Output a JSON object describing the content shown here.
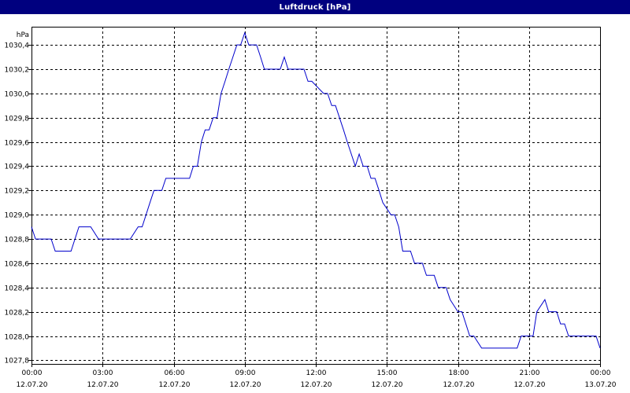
{
  "window": {
    "title": "Luftdruck [hPa]"
  },
  "chart_data": {
    "type": "line",
    "title": "Luftdruck [hPa]",
    "ylabel": "hPa",
    "xlabel": "",
    "ylim": [
      1027.77,
      1030.55
    ],
    "y_ticks": [
      1027.8,
      1028.0,
      1028.2,
      1028.4,
      1028.6,
      1028.8,
      1029.0,
      1029.2,
      1029.4,
      1029.6,
      1029.8,
      1030.0,
      1030.2,
      1030.4
    ],
    "y_tick_labels": [
      "1027,8",
      "1028,0",
      "1028,2",
      "1028,4",
      "1028,6",
      "1028,8",
      "1029,0",
      "1029,2",
      "1029,4",
      "1029,6",
      "1029,8",
      "1030,0",
      "1030,2",
      "1030,4"
    ],
    "x_range_hours": [
      0,
      24
    ],
    "x_ticks": [
      {
        "hour": 0,
        "time": "00:00",
        "date": "12.07.20"
      },
      {
        "hour": 3,
        "time": "03:00",
        "date": "12.07.20"
      },
      {
        "hour": 6,
        "time": "06:00",
        "date": "12.07.20"
      },
      {
        "hour": 9,
        "time": "09:00",
        "date": "12.07.20"
      },
      {
        "hour": 12,
        "time": "12:00",
        "date": "12.07.20"
      },
      {
        "hour": 15,
        "time": "15:00",
        "date": "12.07.20"
      },
      {
        "hour": 18,
        "time": "18:00",
        "date": "12.07.20"
      },
      {
        "hour": 21,
        "time": "21:00",
        "date": "12.07.20"
      },
      {
        "hour": 24,
        "time": "00:00",
        "date": "13.07.20"
      }
    ],
    "grid": true,
    "series": [
      {
        "color": "#0000cc",
        "x": [
          0.0,
          0.17,
          0.83,
          1.0,
          1.67,
          2.0,
          2.5,
          2.83,
          3.67,
          4.0,
          4.17,
          4.5,
          4.67,
          5.0,
          5.17,
          5.5,
          5.67,
          6.0,
          6.17,
          6.67,
          6.83,
          7.0,
          7.17,
          7.33,
          7.5,
          7.67,
          7.83,
          8.0,
          8.17,
          8.33,
          8.5,
          8.67,
          8.83,
          9.0,
          9.17,
          9.5,
          9.67,
          9.83,
          10.5,
          10.67,
          10.83,
          11.5,
          11.67,
          11.83,
          12.33,
          12.5,
          12.67,
          12.83,
          13.0,
          13.17,
          13.33,
          13.5,
          13.67,
          13.83,
          14.0,
          14.17,
          14.33,
          14.5,
          14.67,
          14.83,
          15.17,
          15.33,
          15.5,
          15.67,
          16.0,
          16.17,
          16.5,
          16.67,
          17.0,
          17.17,
          17.5,
          17.67,
          18.0,
          18.17,
          18.5,
          18.67,
          19.0,
          19.17,
          19.5,
          19.67,
          20.5,
          20.67,
          21.17,
          21.33,
          21.67,
          21.83,
          22.17,
          22.33,
          22.5,
          22.67,
          23.0,
          23.5,
          23.83,
          24.0
        ],
        "y": [
          1028.9,
          1028.8,
          1028.8,
          1028.7,
          1028.7,
          1028.9,
          1028.9,
          1028.8,
          1028.8,
          1028.8,
          1028.8,
          1028.9,
          1028.9,
          1029.1,
          1029.2,
          1029.2,
          1029.3,
          1029.3,
          1029.3,
          1029.3,
          1029.4,
          1029.4,
          1029.6,
          1029.7,
          1029.7,
          1029.8,
          1029.8,
          1030.0,
          1030.1,
          1030.2,
          1030.3,
          1030.4,
          1030.4,
          1030.5,
          1030.4,
          1030.4,
          1030.3,
          1030.2,
          1030.2,
          1030.3,
          1030.2,
          1030.2,
          1030.1,
          1030.1,
          1030.0,
          1030.0,
          1029.9,
          1029.9,
          1029.8,
          1029.7,
          1029.6,
          1029.5,
          1029.4,
          1029.5,
          1029.4,
          1029.4,
          1029.3,
          1029.3,
          1029.2,
          1029.1,
          1029.0,
          1029.0,
          1028.9,
          1028.7,
          1028.7,
          1028.6,
          1028.6,
          1028.5,
          1028.5,
          1028.4,
          1028.4,
          1028.3,
          1028.2,
          1028.2,
          1028.0,
          1028.0,
          1027.9,
          1027.9,
          1027.9,
          1027.9,
          1027.9,
          1028.0,
          1028.0,
          1028.2,
          1028.3,
          1028.2,
          1028.2,
          1028.1,
          1028.1,
          1028.0,
          1028.0,
          1028.0,
          1028.0,
          1027.9
        ]
      }
    ]
  }
}
